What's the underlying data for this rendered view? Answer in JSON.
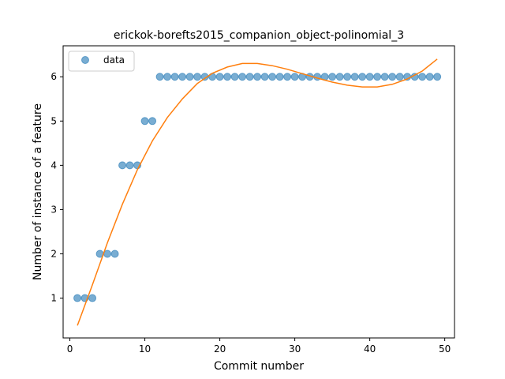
{
  "chart_data": {
    "type": "scatter",
    "title": "erickok-borefts2015_companion_object-polinomial_3",
    "xlabel": "Commit number",
    "ylabel": "Number of instance of a feature",
    "xlim": [
      -0.9,
      51.3
    ],
    "ylim": [
      0.1,
      6.7
    ],
    "xticks": [
      0,
      10,
      20,
      30,
      40,
      50
    ],
    "yticks": [
      1,
      2,
      3,
      4,
      5,
      6
    ],
    "grid": false,
    "legend_position": "top-left",
    "series": [
      {
        "name": "data",
        "kind": "scatter",
        "color": "#1f77b4",
        "x": [
          1,
          2,
          3,
          4,
          5,
          6,
          7,
          8,
          9,
          10,
          11,
          12,
          13,
          14,
          15,
          16,
          17,
          18,
          19,
          20,
          21,
          22,
          23,
          24,
          25,
          26,
          27,
          28,
          29,
          30,
          31,
          32,
          33,
          34,
          35,
          36,
          37,
          38,
          39,
          40,
          41,
          42,
          43,
          44,
          45,
          46,
          47,
          48,
          49
        ],
        "y": [
          1,
          1,
          1,
          2,
          2,
          2,
          4,
          4,
          4,
          5,
          5,
          6,
          6,
          6,
          6,
          6,
          6,
          6,
          6,
          6,
          6,
          6,
          6,
          6,
          6,
          6,
          6,
          6,
          6,
          6,
          6,
          6,
          6,
          6,
          6,
          6,
          6,
          6,
          6,
          6,
          6,
          6,
          6,
          6,
          6,
          6,
          6,
          6,
          6
        ]
      },
      {
        "kind": "line",
        "color": "#ff7f0e",
        "x": [
          1,
          3,
          5,
          7,
          9,
          11,
          13,
          15,
          17,
          19,
          21,
          23,
          25,
          27,
          29,
          31,
          33,
          35,
          37,
          39,
          41,
          43,
          45,
          47,
          49
        ],
        "y": [
          0.38,
          1.3,
          2.25,
          3.12,
          3.9,
          4.55,
          5.08,
          5.5,
          5.85,
          6.08,
          6.22,
          6.3,
          6.3,
          6.25,
          6.17,
          6.07,
          5.97,
          5.88,
          5.81,
          5.77,
          5.77,
          5.83,
          5.95,
          6.13,
          6.4
        ]
      }
    ]
  }
}
